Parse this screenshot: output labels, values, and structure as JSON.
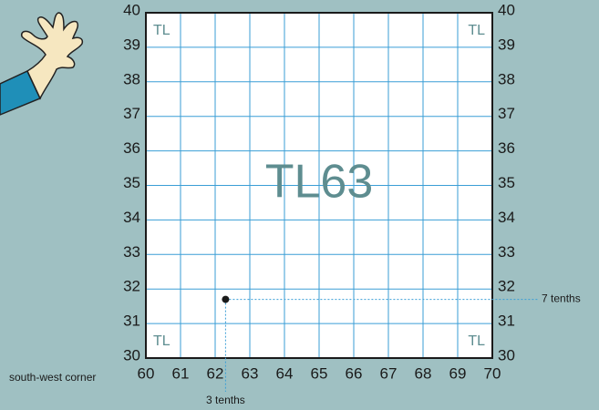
{
  "square": {
    "label": "TL63",
    "corner_labels": [
      "TL",
      "TL",
      "TL",
      "TL"
    ],
    "eastings": [
      60,
      61,
      62,
      63,
      64,
      65,
      66,
      67,
      68,
      69,
      70
    ],
    "northings": [
      30,
      31,
      32,
      33,
      34,
      35,
      36,
      37,
      38,
      39,
      40
    ]
  },
  "point": {
    "easting": 62.3,
    "northing": 31.7,
    "east_note": "3 tenths",
    "north_note": "7 tenths"
  },
  "origin_note": "south-west corner"
}
